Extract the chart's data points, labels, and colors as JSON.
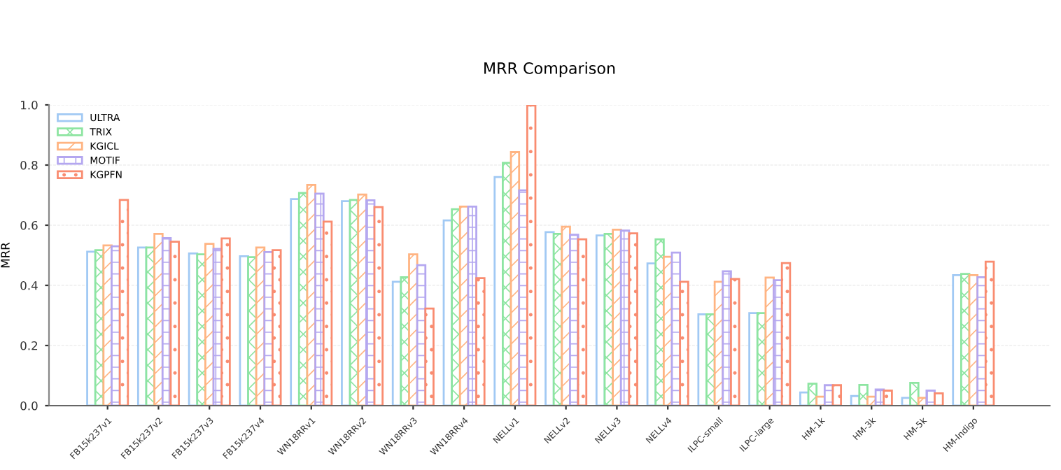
{
  "chart_data": {
    "type": "bar",
    "title": "MRR Comparison",
    "ylabel": "MRR",
    "categories": [
      "FB15k237v1",
      "FB15k237v2",
      "FB15k237v3",
      "FB15k237v4",
      "WN18RRv1",
      "WN18RRv2",
      "WN18RRv3",
      "WN18RRv4",
      "NELLv1",
      "NELLv2",
      "NELLv3",
      "NELLv4",
      "ILPC-small",
      "ILPC-large",
      "HM-1k",
      "HM-3k",
      "HM-5k",
      "HM-Indigo"
    ],
    "series": [
      {
        "name": "ULTRA",
        "color": "#a1c9f4",
        "values": [
          0.512,
          0.526,
          0.506,
          0.497,
          0.687,
          0.68,
          0.412,
          0.616,
          0.76,
          0.577,
          0.566,
          0.473,
          0.304,
          0.308,
          0.044,
          0.032,
          0.026,
          0.434
        ]
      },
      {
        "name": "TRIX",
        "color": "#8de5a1",
        "values": [
          0.517,
          0.526,
          0.503,
          0.494,
          0.707,
          0.684,
          0.427,
          0.653,
          0.807,
          0.571,
          0.571,
          0.553,
          0.304,
          0.308,
          0.073,
          0.069,
          0.076,
          0.438
        ]
      },
      {
        "name": "KGICL",
        "color": "#ffb482",
        "values": [
          0.533,
          0.571,
          0.538,
          0.526,
          0.734,
          0.702,
          0.503,
          0.662,
          0.843,
          0.595,
          0.585,
          0.495,
          0.412,
          0.426,
          0.03,
          0.03,
          0.026,
          0.434
        ]
      },
      {
        "name": "MOTIF",
        "color": "#b4a7f0",
        "values": [
          0.53,
          0.557,
          0.521,
          0.511,
          0.705,
          0.683,
          0.467,
          0.662,
          0.716,
          0.568,
          0.582,
          0.509,
          0.447,
          0.417,
          0.068,
          0.054,
          0.05,
          0.427
        ]
      },
      {
        "name": "KGPFN",
        "color": "#f98c70",
        "values": [
          0.684,
          0.545,
          0.556,
          0.517,
          0.612,
          0.66,
          0.323,
          0.424,
          0.998,
          0.553,
          0.573,
          0.412,
          0.421,
          0.474,
          0.068,
          0.05,
          0.041,
          0.479
        ]
      }
    ],
    "ylim": [
      0,
      1.0
    ],
    "yticks": [
      {
        "value": 0,
        "label": "0.0"
      },
      0.2,
      0.4,
      0.6,
      0.8,
      {
        "value": 1,
        "label": "1.0"
      }
    ],
    "grid": "y",
    "legend": "top left"
  }
}
